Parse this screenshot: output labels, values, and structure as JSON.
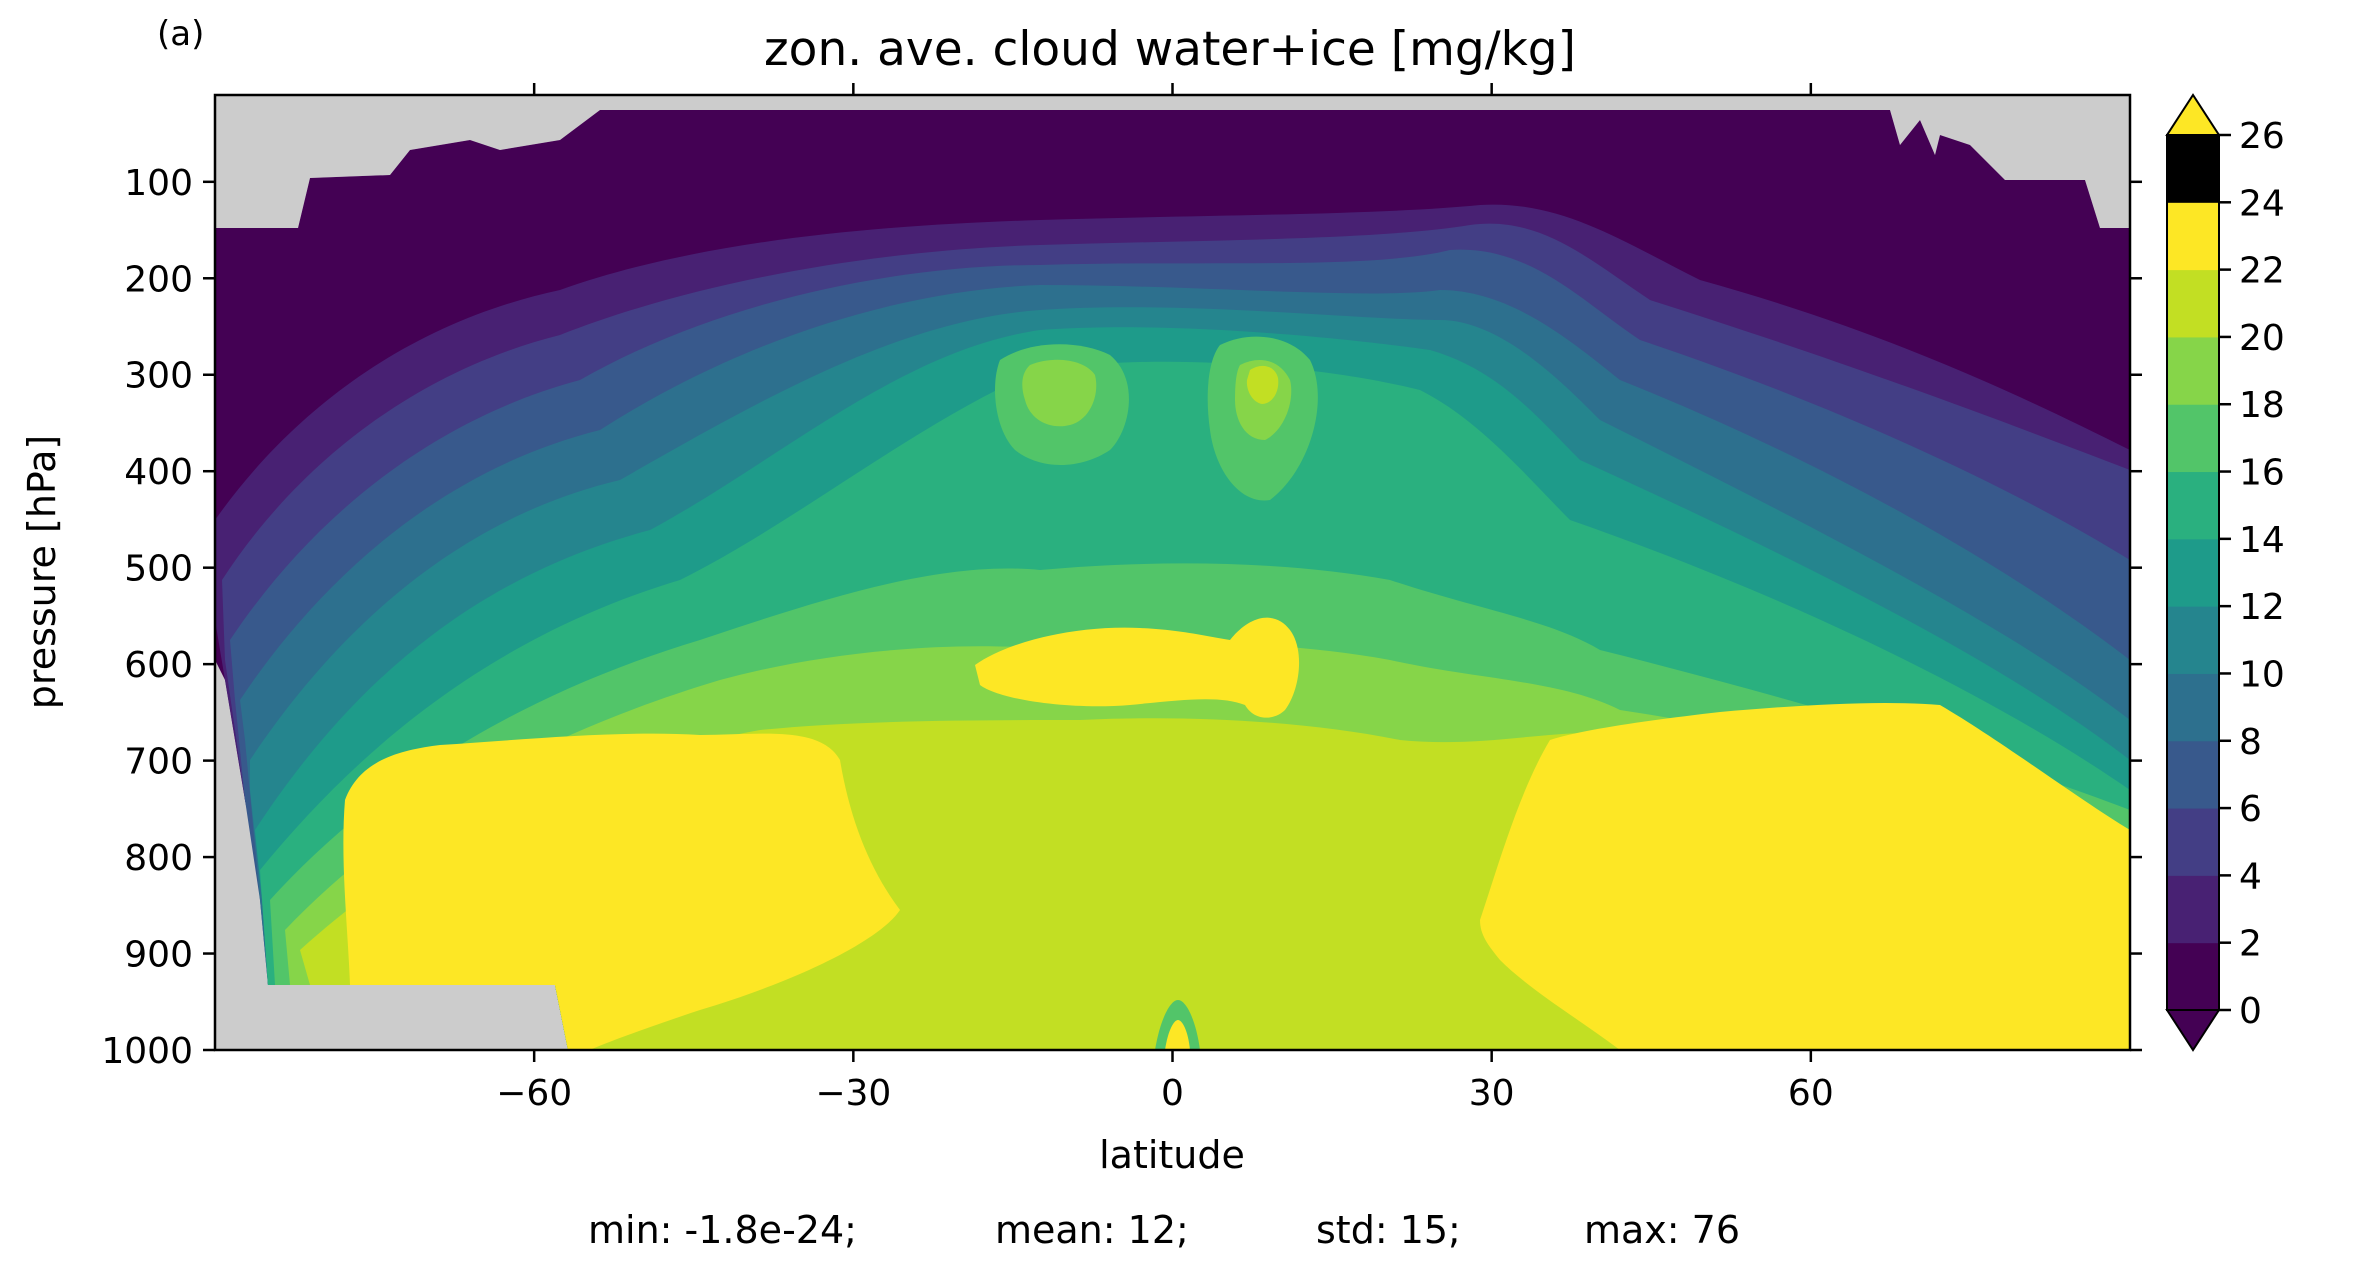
{
  "panel_label": "(a)",
  "chart_data": {
    "type": "heatmap",
    "title": "zon. ave. cloud water+ice [mg/kg]",
    "xlabel": "latitude",
    "ylabel": "pressure [hPa]",
    "xlim": [
      -90,
      90
    ],
    "ylim": [
      1000,
      10
    ],
    "y_inverted": true,
    "x_ticks": [
      -60,
      -30,
      0,
      30,
      60
    ],
    "x_tick_labels": [
      "−60",
      "−30",
      "0",
      "30",
      "60"
    ],
    "y_ticks": [
      100,
      200,
      300,
      400,
      500,
      600,
      700,
      800,
      900,
      1000
    ],
    "y_tick_labels": [
      "100",
      "200",
      "300",
      "400",
      "500",
      "600",
      "700",
      "800",
      "900",
      "1000"
    ],
    "colormap": "viridis",
    "levels": [
      0,
      2,
      4,
      6,
      8,
      10,
      12,
      14,
      16,
      18,
      20,
      22,
      24,
      26
    ],
    "colorbar_tick_labels": [
      "0",
      "2",
      "4",
      "6",
      "8",
      "10",
      "12",
      "14",
      "16",
      "18",
      "20",
      "22",
      "24",
      "26"
    ],
    "level_colors": [
      "#440154",
      "#482173",
      "#433e85",
      "#38598c",
      "#2d708e",
      "#25858e",
      "#1e9b8a",
      "#2ab07f",
      "#52c569",
      "#86d549",
      "#c2df23",
      "#fde725"
    ],
    "under_color": "#440154",
    "over_color": "#fde725",
    "missing_color": "#cccccc",
    "features": [
      {
        "name": "southern low-level maximum",
        "lat": [
          -78,
          -28
        ],
        "pressure": [
          700,
          1000
        ],
        "value": ">26"
      },
      {
        "name": "northern low-level maximum",
        "lat": [
          28,
          90
        ],
        "pressure": [
          650,
          1000
        ],
        "value": ">26"
      },
      {
        "name": "mid-level tropical maximum",
        "lat": [
          -18,
          12
        ],
        "pressure": [
          560,
          640
        ],
        "value": ">26"
      },
      {
        "name": "upper-level tropical maxima",
        "lat": [
          -12,
          12
        ],
        "pressure": [
          280,
          340
        ],
        "value": "20-22"
      }
    ]
  },
  "stats": {
    "min": "min: -1.8e-24;",
    "mean": "mean: 12;",
    "std": "std: 15;",
    "max": "max: 76"
  }
}
